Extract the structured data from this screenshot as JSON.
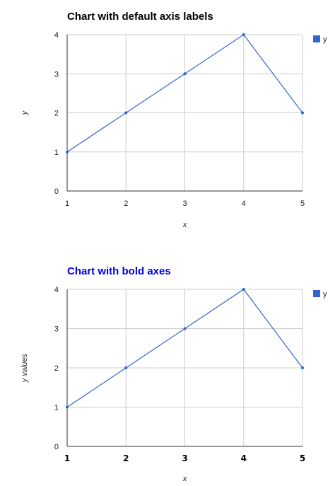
{
  "chart_data": [
    {
      "type": "line",
      "title": "Chart with default axis labels",
      "title_color": "#000000",
      "xlabel": "x",
      "ylabel": "y",
      "x": [
        1,
        2,
        3,
        4,
        5
      ],
      "series": [
        {
          "name": "y",
          "values": [
            1,
            2,
            3,
            4,
            2
          ],
          "color": "#3366cc"
        }
      ],
      "xlim": [
        1,
        5
      ],
      "ylim": [
        0,
        4
      ],
      "xticks": [
        "1",
        "2",
        "3",
        "4",
        "5"
      ],
      "yticks": [
        "0",
        "1",
        "2",
        "3",
        "4"
      ],
      "grid": true,
      "legend": "right",
      "bold_axes": false
    },
    {
      "type": "line",
      "title": "Chart with bold axes",
      "title_color": "#0000ee",
      "xlabel": "x",
      "ylabel": "y values",
      "x": [
        1,
        2,
        3,
        4,
        5
      ],
      "series": [
        {
          "name": "y",
          "values": [
            1,
            2,
            3,
            4,
            2
          ],
          "color": "#3366cc"
        }
      ],
      "xlim": [
        1,
        5
      ],
      "ylim": [
        0,
        4
      ],
      "xticks": [
        "1",
        "2",
        "3",
        "4",
        "5"
      ],
      "yticks": [
        "0",
        "1",
        "2",
        "3",
        "4"
      ],
      "grid": true,
      "legend": "right",
      "bold_axes": true
    }
  ]
}
